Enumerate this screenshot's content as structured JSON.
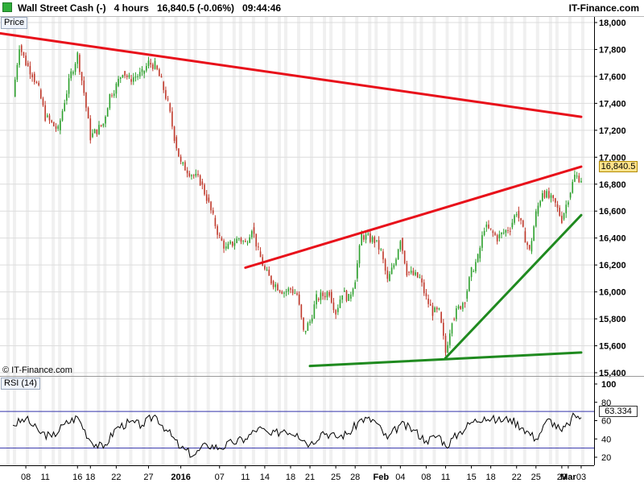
{
  "header": {
    "instrument": "Wall Street Cash (-)",
    "timeframe": "4 hours",
    "last_change": "16,840.5 (-0.06%)",
    "time": "09:44:46",
    "site": "IT-Finance.com"
  },
  "panels": {
    "price_label": "Price",
    "rsi_label": "RSI (14)",
    "copyright": "© IT-Finance.com"
  },
  "last_price_label": "16,840.5",
  "last_rsi_label": "63.334",
  "colors": {
    "up_candle": "#2ca02c",
    "down_candle": "#c0392b",
    "resistance": "#e8101a",
    "support": "#1f8a1f",
    "rsi_line": "#000000",
    "rsi_band": "#3333aa",
    "grid": "#dcdcdc",
    "alt_column": "#f0f0f0"
  },
  "chart_data": [
    {
      "type": "candlestick",
      "panel": "price",
      "ylim": [
        15400,
        18100
      ],
      "y_ticks": [
        15400,
        15600,
        15800,
        16000,
        16200,
        16400,
        16600,
        16800,
        17000,
        17200,
        17400,
        17600,
        17800,
        18000
      ],
      "y_tick_labels": [
        "15,400",
        "15,600",
        "15,800",
        "16,000",
        "16,200",
        "16,400",
        "16,600",
        "16,800",
        "17,000",
        "17,200",
        "17,400",
        "17,600",
        "17,800",
        "18,000"
      ],
      "x_ticks": [
        {
          "date": "2015-12-08",
          "label": "08"
        },
        {
          "date": "2015-12-11",
          "label": "11"
        },
        {
          "date": "2015-12-16",
          "label": "16"
        },
        {
          "date": "2015-12-18",
          "label": "18"
        },
        {
          "date": "2015-12-22",
          "label": "22"
        },
        {
          "date": "2015-12-27",
          "label": "27"
        },
        {
          "date": "2016-01-01",
          "label": "2016"
        },
        {
          "date": "2016-01-07",
          "label": "07"
        },
        {
          "date": "2016-01-11",
          "label": "11"
        },
        {
          "date": "2016-01-14",
          "label": "14"
        },
        {
          "date": "2016-01-18",
          "label": "18"
        },
        {
          "date": "2016-01-21",
          "label": "21"
        },
        {
          "date": "2016-01-25",
          "label": "25"
        },
        {
          "date": "2016-01-28",
          "label": "28"
        },
        {
          "date": "2016-02-01",
          "label": "Feb"
        },
        {
          "date": "2016-02-04",
          "label": "04"
        },
        {
          "date": "2016-02-08",
          "label": "08"
        },
        {
          "date": "2016-02-11",
          "label": "11"
        },
        {
          "date": "2016-02-15",
          "label": "15"
        },
        {
          "date": "2016-02-18",
          "label": "18"
        },
        {
          "date": "2016-02-22",
          "label": "22"
        },
        {
          "date": "2016-02-25",
          "label": "25"
        },
        {
          "date": "2016-02-29",
          "label": "29"
        },
        {
          "date": "2016-03-01",
          "label": "Mar"
        },
        {
          "date": "2016-03-03",
          "label": "03"
        }
      ],
      "close_path": [
        {
          "date": "2015-12-06",
          "value": 17450
        },
        {
          "date": "2015-12-07",
          "value": 17830
        },
        {
          "date": "2015-12-08",
          "value": 17700
        },
        {
          "date": "2015-12-09",
          "value": 17620
        },
        {
          "date": "2015-12-10",
          "value": 17500
        },
        {
          "date": "2015-12-11",
          "value": 17300
        },
        {
          "date": "2015-12-13",
          "value": 17200
        },
        {
          "date": "2015-12-14",
          "value": 17420
        },
        {
          "date": "2015-12-15",
          "value": 17620
        },
        {
          "date": "2015-12-16",
          "value": 17760
        },
        {
          "date": "2015-12-17",
          "value": 17480
        },
        {
          "date": "2015-12-18",
          "value": 17150
        },
        {
          "date": "2015-12-20",
          "value": 17250
        },
        {
          "date": "2015-12-21",
          "value": 17460
        },
        {
          "date": "2015-12-22",
          "value": 17530
        },
        {
          "date": "2015-12-23",
          "value": 17640
        },
        {
          "date": "2015-12-24",
          "value": 17580
        },
        {
          "date": "2015-12-26",
          "value": 17620
        },
        {
          "date": "2015-12-27",
          "value": 17700
        },
        {
          "date": "2015-12-28",
          "value": 17680
        },
        {
          "date": "2015-12-29",
          "value": 17560
        },
        {
          "date": "2015-12-30",
          "value": 17400
        },
        {
          "date": "2015-12-31",
          "value": 17150
        },
        {
          "date": "2016-01-01",
          "value": 16950
        },
        {
          "date": "2016-01-04",
          "value": 16820
        },
        {
          "date": "2016-01-05",
          "value": 16700
        },
        {
          "date": "2016-01-06",
          "value": 16550
        },
        {
          "date": "2016-01-07",
          "value": 16400
        },
        {
          "date": "2016-01-08",
          "value": 16320
        },
        {
          "date": "2016-01-10",
          "value": 16400
        },
        {
          "date": "2016-01-11",
          "value": 16360
        },
        {
          "date": "2016-01-12",
          "value": 16480
        },
        {
          "date": "2016-01-13",
          "value": 16300
        },
        {
          "date": "2016-01-14",
          "value": 16160
        },
        {
          "date": "2016-01-15",
          "value": 16080
        },
        {
          "date": "2016-01-17",
          "value": 16000
        },
        {
          "date": "2016-01-18",
          "value": 16020
        },
        {
          "date": "2016-01-19",
          "value": 15980
        },
        {
          "date": "2016-01-20",
          "value": 15700
        },
        {
          "date": "2016-01-21",
          "value": 15780
        },
        {
          "date": "2016-01-22",
          "value": 15950
        },
        {
          "date": "2016-01-24",
          "value": 16000
        },
        {
          "date": "2016-01-25",
          "value": 15850
        },
        {
          "date": "2016-01-26",
          "value": 16000
        },
        {
          "date": "2016-01-27",
          "value": 15950
        },
        {
          "date": "2016-01-28",
          "value": 16100
        },
        {
          "date": "2016-01-29",
          "value": 16420
        },
        {
          "date": "2016-01-31",
          "value": 16380
        },
        {
          "date": "2016-02-01",
          "value": 16300
        },
        {
          "date": "2016-02-02",
          "value": 16080
        },
        {
          "date": "2016-02-03",
          "value": 16200
        },
        {
          "date": "2016-02-04",
          "value": 16400
        },
        {
          "date": "2016-02-05",
          "value": 16150
        },
        {
          "date": "2016-02-07",
          "value": 16100
        },
        {
          "date": "2016-02-08",
          "value": 15950
        },
        {
          "date": "2016-02-09",
          "value": 15850
        },
        {
          "date": "2016-02-10",
          "value": 15850
        },
        {
          "date": "2016-02-11",
          "value": 15550
        },
        {
          "date": "2016-02-12",
          "value": 15800
        },
        {
          "date": "2016-02-14",
          "value": 15950
        },
        {
          "date": "2016-02-15",
          "value": 16150
        },
        {
          "date": "2016-02-16",
          "value": 16250
        },
        {
          "date": "2016-02-17",
          "value": 16480
        },
        {
          "date": "2016-02-18",
          "value": 16450
        },
        {
          "date": "2016-02-19",
          "value": 16400
        },
        {
          "date": "2016-02-21",
          "value": 16480
        },
        {
          "date": "2016-02-22",
          "value": 16600
        },
        {
          "date": "2016-02-23",
          "value": 16450
        },
        {
          "date": "2016-02-24",
          "value": 16300
        },
        {
          "date": "2016-02-25",
          "value": 16580
        },
        {
          "date": "2016-02-26",
          "value": 16750
        },
        {
          "date": "2016-02-28",
          "value": 16650
        },
        {
          "date": "2016-02-29",
          "value": 16540
        },
        {
          "date": "2016-03-01",
          "value": 16700
        },
        {
          "date": "2016-03-02",
          "value": 16860
        },
        {
          "date": "2016-03-03",
          "value": 16840
        }
      ],
      "trendlines": [
        {
          "color": "resistance",
          "from": {
            "date": "2015-12-04",
            "value": 17920
          },
          "to": {
            "date": "2016-03-03",
            "value": 17300
          }
        },
        {
          "color": "resistance",
          "from": {
            "date": "2016-01-11",
            "value": 16180
          },
          "to": {
            "date": "2016-03-03",
            "value": 16930
          }
        },
        {
          "color": "support",
          "from": {
            "date": "2016-01-21",
            "value": 15450
          },
          "to": {
            "date": "2016-03-03",
            "value": 15550
          }
        },
        {
          "color": "support",
          "from": {
            "date": "2016-02-11",
            "value": 15510
          },
          "to": {
            "date": "2016-03-03",
            "value": 16570
          }
        }
      ],
      "last_value": 16840.5
    },
    {
      "type": "line",
      "panel": "rsi",
      "ylim": [
        0,
        100
      ],
      "y_ticks": [
        20,
        40,
        60,
        80,
        100
      ],
      "y_tick_labels": [
        "20",
        "40",
        "60",
        "80",
        "100"
      ],
      "bands": [
        30,
        70
      ],
      "rsi_path": [
        {
          "date": "2015-12-06",
          "value": 55
        },
        {
          "date": "2015-12-08",
          "value": 62
        },
        {
          "date": "2015-12-10",
          "value": 48
        },
        {
          "date": "2015-12-12",
          "value": 42
        },
        {
          "date": "2015-12-14",
          "value": 56
        },
        {
          "date": "2015-12-16",
          "value": 64
        },
        {
          "date": "2015-12-18",
          "value": 38
        },
        {
          "date": "2015-12-20",
          "value": 30
        },
        {
          "date": "2015-12-22",
          "value": 52
        },
        {
          "date": "2015-12-24",
          "value": 58
        },
        {
          "date": "2015-12-26",
          "value": 55
        },
        {
          "date": "2015-12-28",
          "value": 66
        },
        {
          "date": "2015-12-30",
          "value": 48
        },
        {
          "date": "2016-01-01",
          "value": 30
        },
        {
          "date": "2016-01-03",
          "value": 22
        },
        {
          "date": "2016-01-05",
          "value": 34
        },
        {
          "date": "2016-01-07",
          "value": 30
        },
        {
          "date": "2016-01-09",
          "value": 36
        },
        {
          "date": "2016-01-11",
          "value": 40
        },
        {
          "date": "2016-01-13",
          "value": 52
        },
        {
          "date": "2016-01-15",
          "value": 44
        },
        {
          "date": "2016-01-17",
          "value": 50
        },
        {
          "date": "2016-01-19",
          "value": 46
        },
        {
          "date": "2016-01-21",
          "value": 34
        },
        {
          "date": "2016-01-23",
          "value": 48
        },
        {
          "date": "2016-01-25",
          "value": 42
        },
        {
          "date": "2016-01-27",
          "value": 46
        },
        {
          "date": "2016-01-29",
          "value": 62
        },
        {
          "date": "2016-01-31",
          "value": 60
        },
        {
          "date": "2016-02-02",
          "value": 40
        },
        {
          "date": "2016-02-04",
          "value": 56
        },
        {
          "date": "2016-02-06",
          "value": 50
        },
        {
          "date": "2016-02-08",
          "value": 38
        },
        {
          "date": "2016-02-10",
          "value": 44
        },
        {
          "date": "2016-02-11",
          "value": 32
        },
        {
          "date": "2016-02-13",
          "value": 46
        },
        {
          "date": "2016-02-15",
          "value": 58
        },
        {
          "date": "2016-02-17",
          "value": 64
        },
        {
          "date": "2016-02-19",
          "value": 60
        },
        {
          "date": "2016-02-21",
          "value": 62
        },
        {
          "date": "2016-02-23",
          "value": 52
        },
        {
          "date": "2016-02-25",
          "value": 40
        },
        {
          "date": "2016-02-27",
          "value": 62
        },
        {
          "date": "2016-02-29",
          "value": 48
        },
        {
          "date": "2016-03-01",
          "value": 56
        },
        {
          "date": "2016-03-02",
          "value": 66
        },
        {
          "date": "2016-03-03",
          "value": 63.334
        }
      ],
      "last_value": 63.334
    }
  ]
}
